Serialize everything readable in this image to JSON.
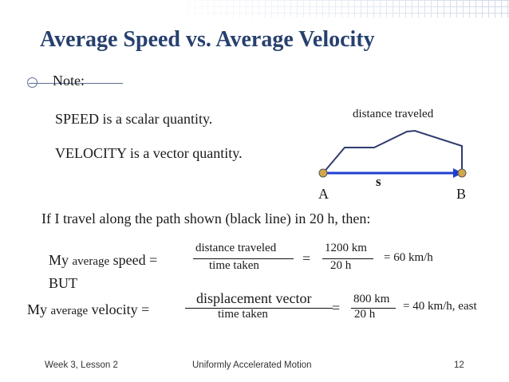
{
  "slide": {
    "title": "Average Speed vs. Average Velocity",
    "note_label": "Note:",
    "speed_statement": "SPEED is a scalar quantity.",
    "velocity_statement": "VELOCITY is a vector quantity.",
    "diagram": {
      "distance_label": "distance traveled",
      "displacement_label": "s",
      "point_a": "A",
      "point_b": "B",
      "colors": {
        "path": "#2f3c6e",
        "arrow": "#1f3fd1",
        "endpoint": "#d3a84b"
      }
    },
    "intro": "If I travel along the path shown (black line) in 20 h, then:",
    "speed_eq": {
      "prefix": "My ",
      "average": "average",
      "speed": " speed =",
      "num": "distance traveled",
      "den": "time taken",
      "eq": "=",
      "num_val": "1200 km",
      "den_val": "20 h",
      "result": "= 60 km/h"
    },
    "but": "BUT",
    "velocity_eq": {
      "prefix": "My ",
      "average": "average",
      "velocity": " velocity =",
      "num": "displacement vector",
      "den": "time taken",
      "eq": "=",
      "num_val": "800 km",
      "den_val": "20 h",
      "result": "= 40 km/h, east"
    },
    "footer": {
      "left": "Week 3, Lesson 2",
      "center": "Uniformly Accelerated Motion",
      "page": "12"
    }
  }
}
